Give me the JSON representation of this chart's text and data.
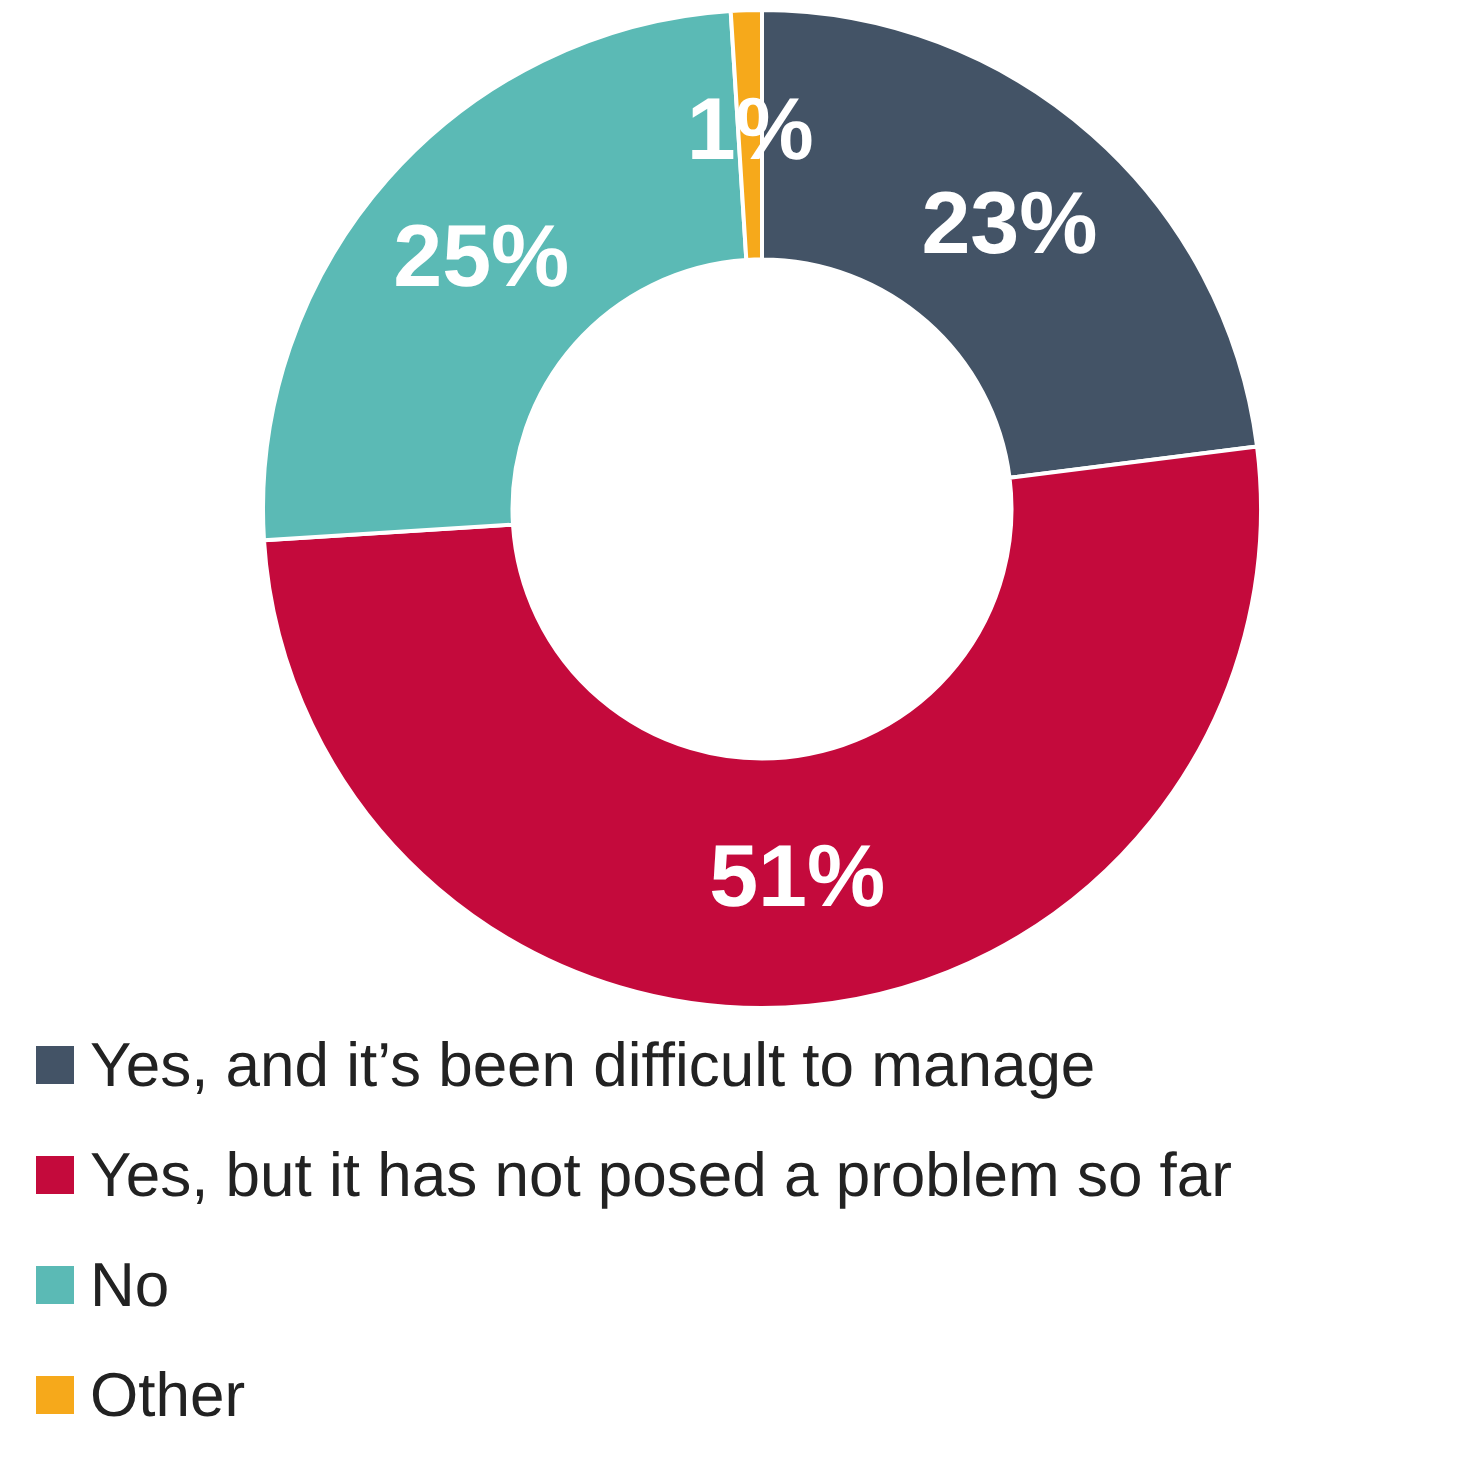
{
  "chart_data": {
    "type": "donut",
    "categories": [
      "Yes, and it’s been difficult to manage",
      "Yes, but it has not posed a problem so far",
      "No",
      "Other"
    ],
    "values": [
      23,
      51,
      25,
      1
    ],
    "colors": [
      "#435366",
      "#c40a3c",
      "#5bbab5",
      "#f6a91b"
    ],
    "value_labels": [
      "23%",
      "51%",
      "25%",
      "1%"
    ],
    "legend": "bottom"
  }
}
